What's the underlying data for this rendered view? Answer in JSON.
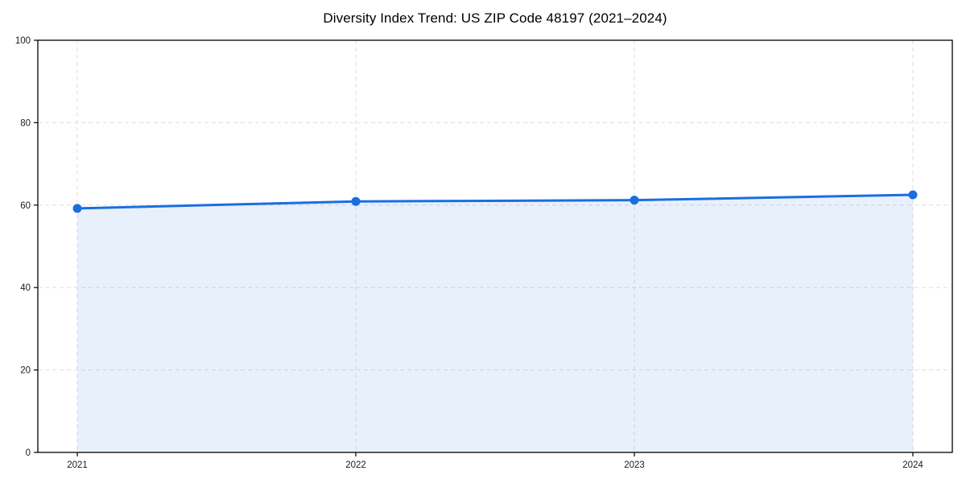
{
  "chart_data": {
    "type": "area",
    "title": "Diversity Index Trend: US ZIP Code 48197 (2021–2024)",
    "xlabel": "",
    "ylabel": "",
    "categories": [
      "2021",
      "2022",
      "2023",
      "2024"
    ],
    "values": [
      59.2,
      60.9,
      61.2,
      62.5
    ],
    "ylim": [
      0,
      100
    ],
    "yticks": [
      0,
      20,
      40,
      60,
      80,
      100
    ],
    "grid": true,
    "grid_style": "dashed",
    "legend": "none",
    "marker": "circle",
    "colors": {
      "line": "#1a6ee0",
      "marker": "#1a6ee0",
      "fill": "rgba(26,110,224,0.10)",
      "grid": "#dedede",
      "axis": "#000000",
      "tick_text": "#1a1a1a",
      "background": "#ffffff"
    }
  }
}
